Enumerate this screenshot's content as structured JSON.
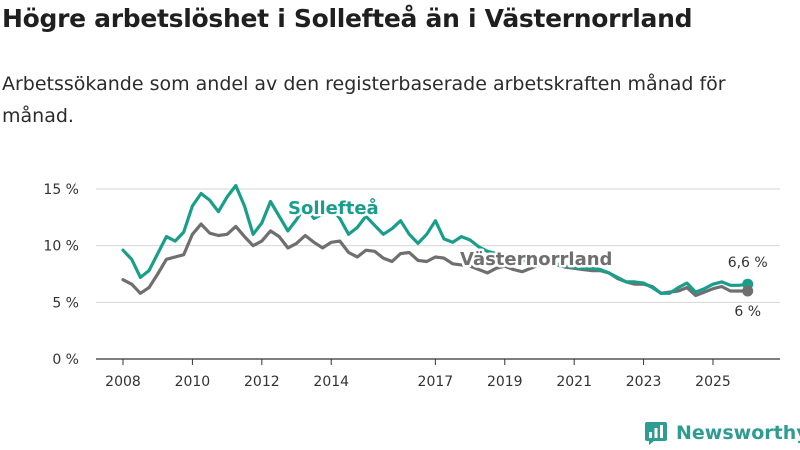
{
  "header": {
    "title": "Högre arbetslöshet i Sollefteå än i Västernorrland",
    "subtitle": "Arbetssökande som andel av den registerbaserade arbetskraften månad för månad."
  },
  "brand": {
    "name": "Newsworthy"
  },
  "colors": {
    "sollefte": "#1a9e8c",
    "vasternorrland": "#6f6f6f",
    "grid": "#d6d6d6",
    "axis": "#333333",
    "logo": "#2f9c92"
  },
  "chart_data": {
    "type": "line",
    "title": "Högre arbetslöshet i Sollefteå än i Västernorrland",
    "subtitle": "Arbetssökande som andel av den registerbaserade arbetskraften månad för månad.",
    "xlabel": "",
    "ylabel": "",
    "xlim": [
      2008,
      2026.5
    ],
    "ylim": [
      0,
      15
    ],
    "y_ticks": [
      0,
      5,
      10,
      15
    ],
    "y_tick_labels": [
      "0 %",
      "5 %",
      "10 %",
      "15 %"
    ],
    "x_ticks": [
      2008,
      2010,
      2012,
      2014,
      2017,
      2019,
      2021,
      2023,
      2025
    ],
    "x_tick_labels": [
      "2008",
      "2010",
      "2012",
      "2014",
      "2017",
      "2019",
      "2021",
      "2023",
      "2025"
    ],
    "grid": true,
    "series": [
      {
        "name": "Sollefteå",
        "color": "#1a9e8c",
        "end_label": "6,6 %",
        "points": [
          [
            2008.0,
            9.6
          ],
          [
            2008.25,
            8.8
          ],
          [
            2008.5,
            7.2
          ],
          [
            2008.75,
            7.8
          ],
          [
            2009.0,
            9.3
          ],
          [
            2009.25,
            10.8
          ],
          [
            2009.5,
            10.4
          ],
          [
            2009.75,
            11.2
          ],
          [
            2010.0,
            13.5
          ],
          [
            2010.25,
            14.6
          ],
          [
            2010.5,
            14.0
          ],
          [
            2010.75,
            13.0
          ],
          [
            2011.0,
            14.3
          ],
          [
            2011.25,
            15.3
          ],
          [
            2011.5,
            13.5
          ],
          [
            2011.75,
            11.0
          ],
          [
            2012.0,
            12.0
          ],
          [
            2012.25,
            13.9
          ],
          [
            2012.5,
            12.6
          ],
          [
            2012.75,
            11.3
          ],
          [
            2013.0,
            12.3
          ],
          [
            2013.25,
            13.5
          ],
          [
            2013.5,
            12.4
          ],
          [
            2013.75,
            12.8
          ],
          [
            2014.0,
            13.3
          ],
          [
            2014.25,
            12.4
          ],
          [
            2014.5,
            11.0
          ],
          [
            2014.75,
            11.6
          ],
          [
            2015.0,
            12.6
          ],
          [
            2015.25,
            11.8
          ],
          [
            2015.5,
            11.0
          ],
          [
            2015.75,
            11.5
          ],
          [
            2016.0,
            12.2
          ],
          [
            2016.25,
            11.0
          ],
          [
            2016.5,
            10.2
          ],
          [
            2016.75,
            11.0
          ],
          [
            2017.0,
            12.2
          ],
          [
            2017.25,
            10.6
          ],
          [
            2017.5,
            10.3
          ],
          [
            2017.75,
            10.8
          ],
          [
            2018.0,
            10.5
          ],
          [
            2018.25,
            9.9
          ],
          [
            2018.5,
            9.5
          ],
          [
            2018.75,
            9.3
          ],
          [
            2019.0,
            9.2
          ],
          [
            2019.25,
            9.0
          ],
          [
            2019.5,
            8.7
          ],
          [
            2019.75,
            8.6
          ],
          [
            2020.0,
            8.5
          ],
          [
            2020.25,
            8.6
          ],
          [
            2020.5,
            8.4
          ],
          [
            2020.75,
            8.2
          ],
          [
            2021.0,
            8.1
          ],
          [
            2021.25,
            8.0
          ],
          [
            2021.5,
            8.0
          ],
          [
            2021.75,
            7.9
          ],
          [
            2022.0,
            7.6
          ],
          [
            2022.25,
            7.2
          ],
          [
            2022.5,
            6.8
          ],
          [
            2022.75,
            6.8
          ],
          [
            2023.0,
            6.7
          ],
          [
            2023.25,
            6.3
          ],
          [
            2023.5,
            5.8
          ],
          [
            2023.75,
            5.8
          ],
          [
            2024.0,
            6.3
          ],
          [
            2024.25,
            6.7
          ],
          [
            2024.5,
            5.9
          ],
          [
            2024.75,
            6.2
          ],
          [
            2025.0,
            6.6
          ],
          [
            2025.25,
            6.8
          ],
          [
            2025.5,
            6.5
          ],
          [
            2025.75,
            6.5
          ],
          [
            2026.0,
            6.6
          ]
        ]
      },
      {
        "name": "Västernorrland",
        "color": "#6f6f6f",
        "end_label": "6 %",
        "points": [
          [
            2008.0,
            7.0
          ],
          [
            2008.25,
            6.6
          ],
          [
            2008.5,
            5.8
          ],
          [
            2008.75,
            6.3
          ],
          [
            2009.0,
            7.5
          ],
          [
            2009.25,
            8.8
          ],
          [
            2009.5,
            9.0
          ],
          [
            2009.75,
            9.2
          ],
          [
            2010.0,
            11.0
          ],
          [
            2010.25,
            11.9
          ],
          [
            2010.5,
            11.1
          ],
          [
            2010.75,
            10.9
          ],
          [
            2011.0,
            11.0
          ],
          [
            2011.25,
            11.7
          ],
          [
            2011.5,
            10.8
          ],
          [
            2011.75,
            10.0
          ],
          [
            2012.0,
            10.4
          ],
          [
            2012.25,
            11.3
          ],
          [
            2012.5,
            10.8
          ],
          [
            2012.75,
            9.8
          ],
          [
            2013.0,
            10.2
          ],
          [
            2013.25,
            10.9
          ],
          [
            2013.5,
            10.3
          ],
          [
            2013.75,
            9.8
          ],
          [
            2014.0,
            10.3
          ],
          [
            2014.25,
            10.4
          ],
          [
            2014.5,
            9.4
          ],
          [
            2014.75,
            9.0
          ],
          [
            2015.0,
            9.6
          ],
          [
            2015.25,
            9.5
          ],
          [
            2015.5,
            8.9
          ],
          [
            2015.75,
            8.6
          ],
          [
            2016.0,
            9.3
          ],
          [
            2016.25,
            9.4
          ],
          [
            2016.5,
            8.7
          ],
          [
            2016.75,
            8.6
          ],
          [
            2017.0,
            9.0
          ],
          [
            2017.25,
            8.9
          ],
          [
            2017.5,
            8.4
          ],
          [
            2017.75,
            8.3
          ],
          [
            2018.0,
            8.2
          ],
          [
            2018.25,
            7.9
          ],
          [
            2018.5,
            7.6
          ],
          [
            2018.75,
            8.0
          ],
          [
            2019.0,
            8.2
          ],
          [
            2019.25,
            7.9
          ],
          [
            2019.5,
            7.7
          ],
          [
            2019.75,
            8.0
          ],
          [
            2020.0,
            8.3
          ],
          [
            2020.25,
            8.5
          ],
          [
            2020.5,
            8.3
          ],
          [
            2020.75,
            8.1
          ],
          [
            2021.0,
            8.0
          ],
          [
            2021.25,
            7.9
          ],
          [
            2021.5,
            7.8
          ],
          [
            2021.75,
            7.8
          ],
          [
            2022.0,
            7.6
          ],
          [
            2022.25,
            7.1
          ],
          [
            2022.5,
            6.8
          ],
          [
            2022.75,
            6.6
          ],
          [
            2023.0,
            6.6
          ],
          [
            2023.25,
            6.4
          ],
          [
            2023.5,
            5.8
          ],
          [
            2023.75,
            5.9
          ],
          [
            2024.0,
            6.0
          ],
          [
            2024.25,
            6.3
          ],
          [
            2024.5,
            5.6
          ],
          [
            2024.75,
            5.9
          ],
          [
            2025.0,
            6.2
          ],
          [
            2025.25,
            6.4
          ],
          [
            2025.5,
            6.0
          ],
          [
            2025.75,
            6.0
          ],
          [
            2026.0,
            6.0
          ]
        ]
      }
    ],
    "annotations": [
      {
        "text": "Sollefteå",
        "series": "Sollefteå"
      },
      {
        "text": "Västernorrland",
        "series": "Västernorrland"
      }
    ]
  }
}
